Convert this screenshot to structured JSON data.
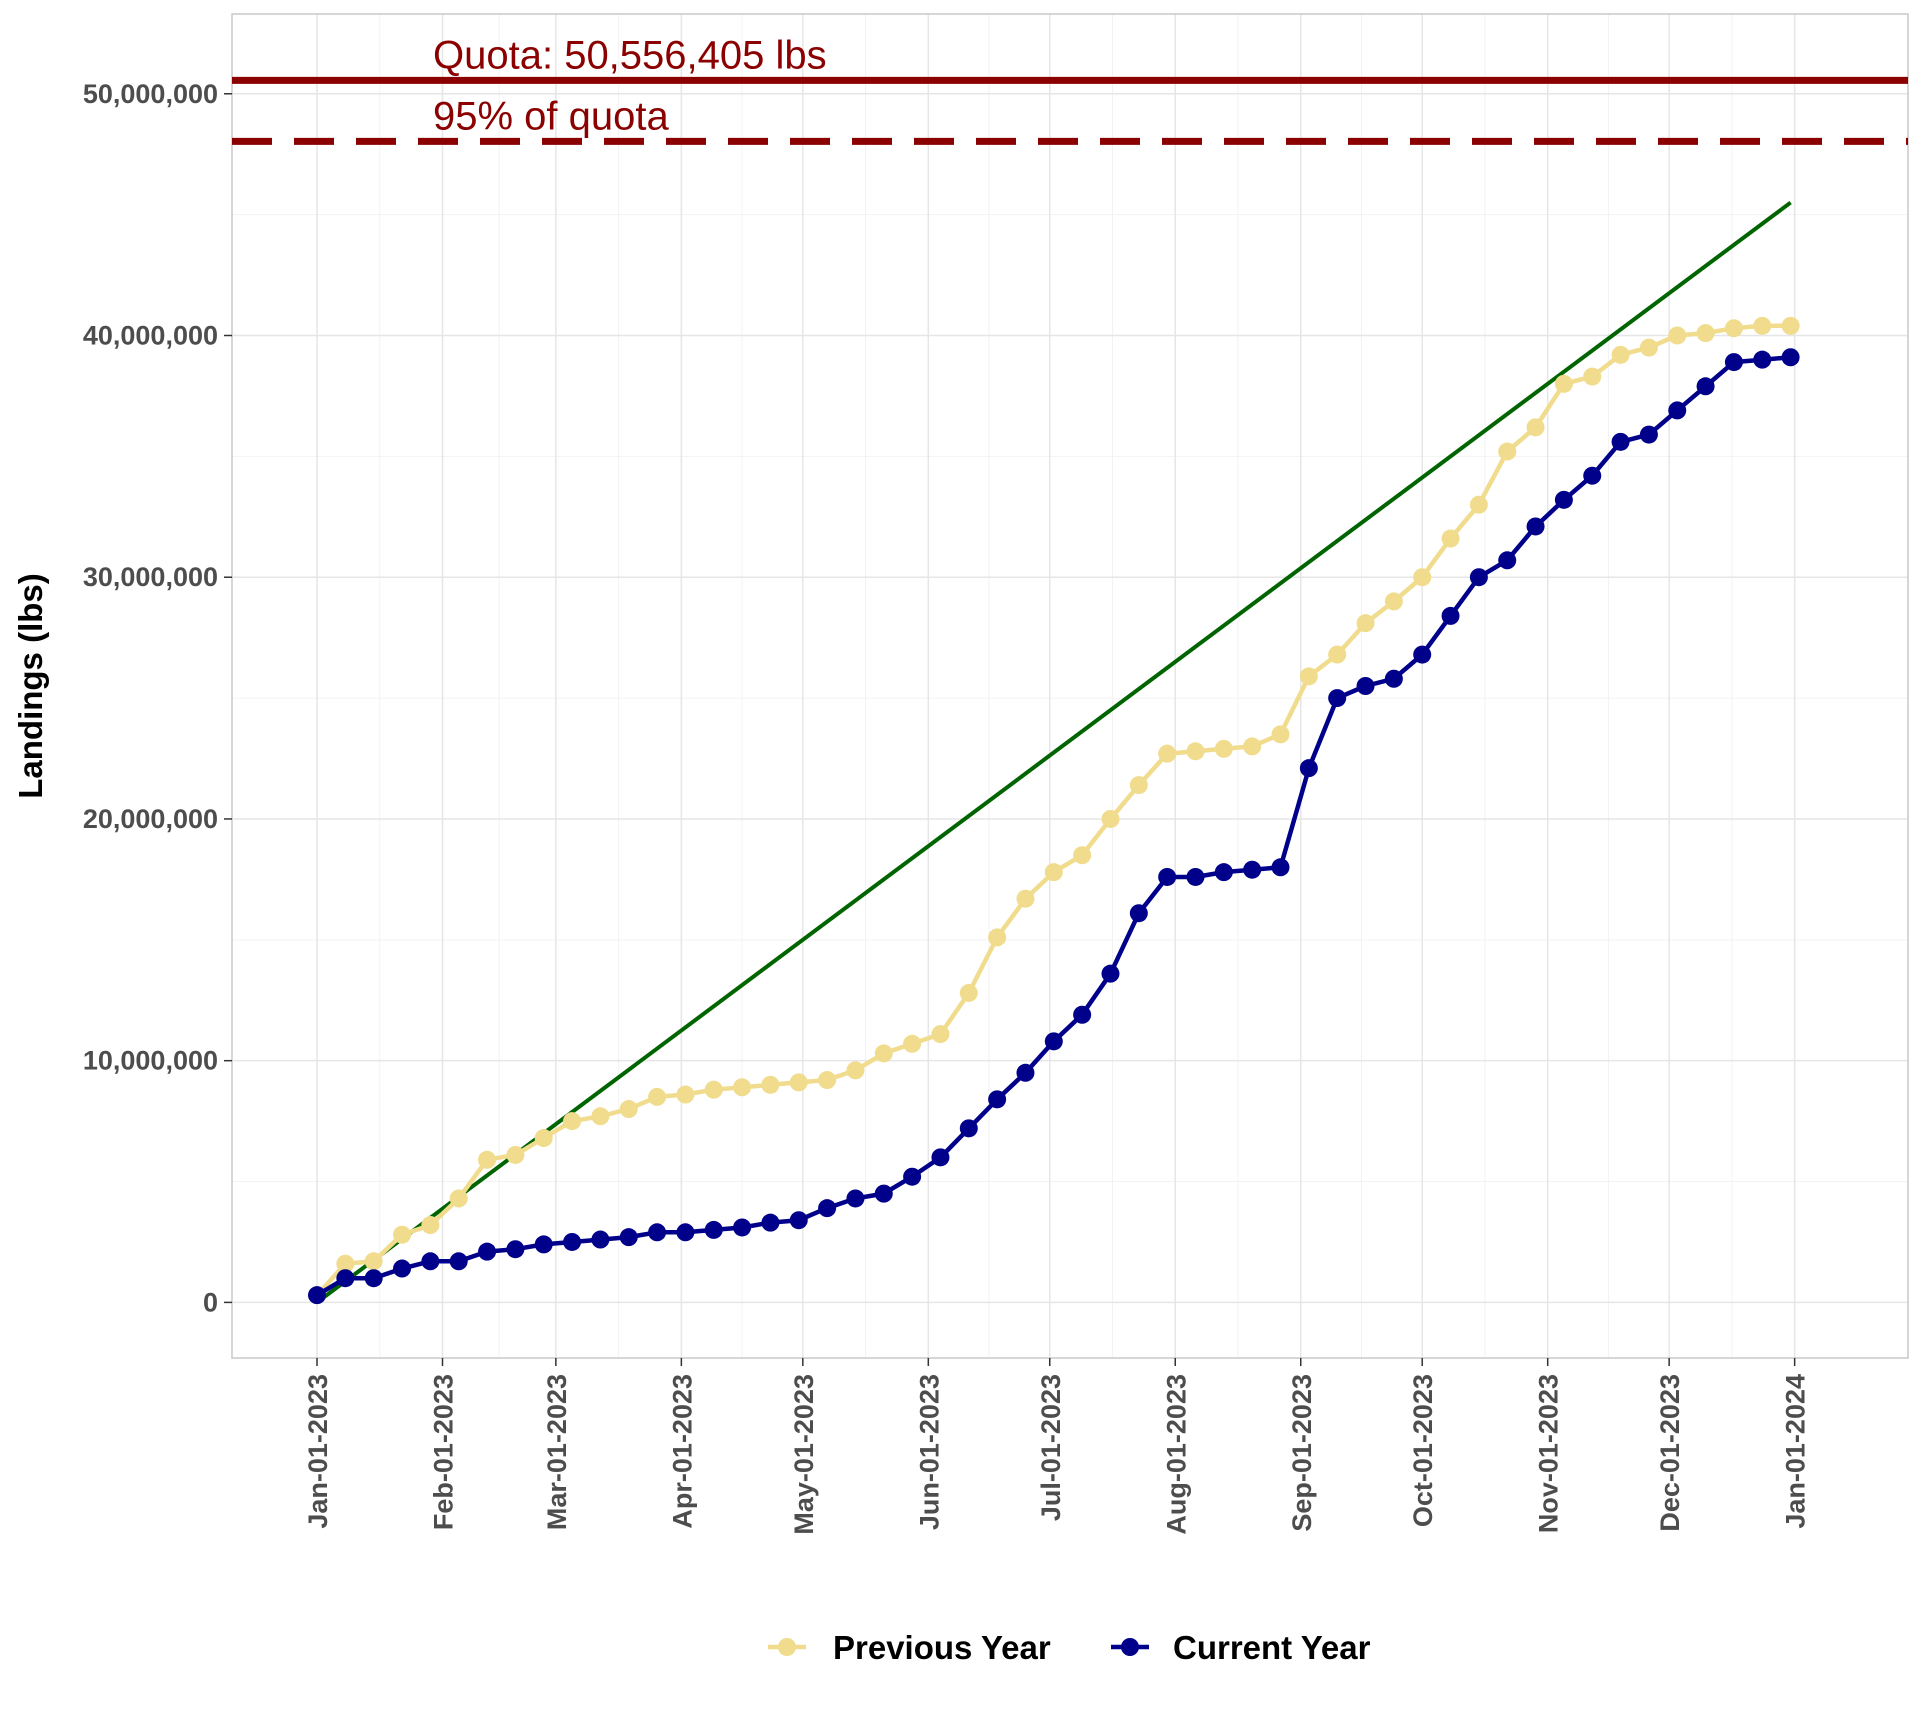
{
  "chart_data": {
    "type": "line",
    "ylabel": "Landings (lbs)",
    "xlabel": "",
    "ylim": [
      -2300000,
      53300000
    ],
    "xlim": [
      "2022-12-11",
      "2024-01-29"
    ],
    "y_ticks": [
      0,
      10000000,
      20000000,
      30000000,
      40000000,
      50000000
    ],
    "y_tick_labels": [
      "0",
      "10,000,000",
      "20,000,000",
      "30,000,000",
      "40,000,000",
      "50,000,000"
    ],
    "x_ticks": [
      "2023-01-01",
      "2023-02-01",
      "2023-03-01",
      "2023-04-01",
      "2023-05-01",
      "2023-06-01",
      "2023-07-01",
      "2023-08-01",
      "2023-09-01",
      "2023-10-01",
      "2023-11-01",
      "2023-12-01",
      "2024-01-01"
    ],
    "x_tick_labels": [
      "Jan-01-2023",
      "Feb-01-2023",
      "Mar-01-2023",
      "Apr-01-2023",
      "May-01-2023",
      "Jun-01-2023",
      "Jul-01-2023",
      "Aug-01-2023",
      "Sep-01-2023",
      "Oct-01-2023",
      "Nov-01-2023",
      "Dec-01-2023",
      "Jan-01-2024"
    ],
    "grid": true,
    "legend_position": "bottom",
    "dates": [
      "2023-01-01",
      "2023-01-08",
      "2023-01-15",
      "2023-01-22",
      "2023-01-29",
      "2023-02-05",
      "2023-02-12",
      "2023-02-19",
      "2023-02-26",
      "2023-03-05",
      "2023-03-12",
      "2023-03-19",
      "2023-03-26",
      "2023-04-02",
      "2023-04-09",
      "2023-04-16",
      "2023-04-23",
      "2023-04-30",
      "2023-05-07",
      "2023-05-14",
      "2023-05-21",
      "2023-05-28",
      "2023-06-04",
      "2023-06-11",
      "2023-06-18",
      "2023-06-25",
      "2023-07-02",
      "2023-07-09",
      "2023-07-16",
      "2023-07-23",
      "2023-07-30",
      "2023-08-06",
      "2023-08-13",
      "2023-08-20",
      "2023-08-27",
      "2023-09-03",
      "2023-09-10",
      "2023-09-17",
      "2023-09-24",
      "2023-10-01",
      "2023-10-08",
      "2023-10-15",
      "2023-10-22",
      "2023-10-29",
      "2023-11-05",
      "2023-11-12",
      "2023-11-19",
      "2023-11-26",
      "2023-12-03",
      "2023-12-10",
      "2023-12-17",
      "2023-12-24",
      "2023-12-31"
    ],
    "series": [
      {
        "name": "Previous Year",
        "color": "#f0dc8c",
        "values": [
          300000,
          1600000,
          1700000,
          2800000,
          3200000,
          4300000,
          5900000,
          6100000,
          6800000,
          7500000,
          7700000,
          8000000,
          8500000,
          8600000,
          8800000,
          8900000,
          9000000,
          9100000,
          9200000,
          9600000,
          10300000,
          10700000,
          11100000,
          12800000,
          15100000,
          16700000,
          17800000,
          18500000,
          20000000,
          21400000,
          22700000,
          22800000,
          22900000,
          23000000,
          23500000,
          25900000,
          26800000,
          28100000,
          29000000,
          30000000,
          31600000,
          33000000,
          35200000,
          36200000,
          38000000,
          38300000,
          39200000,
          39500000,
          40000000,
          40100000,
          40300000,
          40400000,
          40400000
        ]
      },
      {
        "name": "Current Year",
        "color": "#00008b",
        "values": [
          300000,
          1000000,
          1000000,
          1400000,
          1700000,
          1700000,
          2100000,
          2200000,
          2400000,
          2500000,
          2600000,
          2700000,
          2900000,
          2900000,
          3000000,
          3100000,
          3300000,
          3400000,
          3900000,
          4300000,
          4500000,
          5200000,
          6000000,
          7200000,
          8400000,
          9500000,
          10800000,
          11900000,
          13600000,
          16100000,
          17600000,
          17600000,
          17800000,
          17900000,
          18000000,
          22100000,
          25000000,
          25500000,
          25800000,
          26800000,
          28400000,
          30000000,
          30700000,
          32100000,
          33200000,
          34200000,
          35600000,
          35900000,
          36900000,
          37900000,
          38900000,
          39000000,
          39100000
        ]
      }
    ],
    "reference_line": {
      "color": "#006400",
      "start": {
        "x": "2023-01-01",
        "y": 0
      },
      "end": {
        "x": "2023-12-31",
        "y": 45500000
      }
    },
    "quota": {
      "value": 50556405,
      "label": "Quota: 50,556,405 lbs",
      "color": "#8b0000"
    },
    "quota_95": {
      "value": 48028585,
      "label": "95% of quota",
      "color": "#8b0000"
    }
  }
}
